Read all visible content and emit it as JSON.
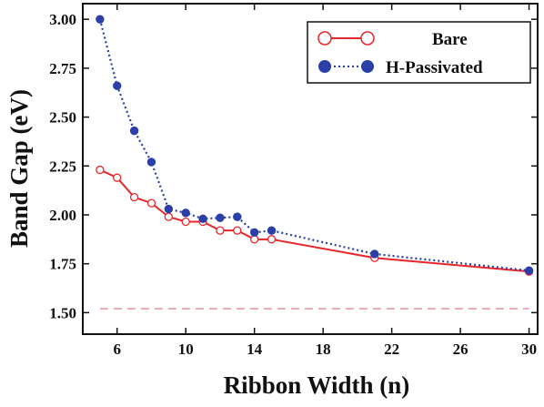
{
  "chart_data": {
    "type": "line",
    "xlabel": "Ribbon Width (n)",
    "ylabel": "Band Gap (eV)",
    "xlim": [
      4,
      30.5
    ],
    "ylim": [
      1.39,
      3.08
    ],
    "x_ticks": [
      6,
      10,
      14,
      18,
      22,
      26,
      30
    ],
    "x_tick_labels": [
      "6",
      "10",
      "14",
      "18",
      "22",
      "26",
      "30"
    ],
    "y_ticks": [
      1.5,
      1.75,
      2.0,
      2.25,
      2.5,
      2.75,
      3.0
    ],
    "y_tick_labels": [
      "1.50",
      "1.75",
      "2.00",
      "2.25",
      "2.50",
      "2.75",
      "3.00"
    ],
    "grid": false,
    "legend_position": "top-right",
    "series": [
      {
        "name": "Bare",
        "color": "#e8262a",
        "marker": "open-circle",
        "line_style": "solid",
        "x": [
          5,
          6,
          7,
          8,
          9,
          10,
          11,
          12,
          13,
          14,
          15,
          21,
          30
        ],
        "y": [
          2.23,
          2.19,
          2.09,
          2.06,
          1.99,
          1.965,
          1.965,
          1.92,
          1.92,
          1.875,
          1.875,
          1.78,
          1.71
        ]
      },
      {
        "name": "H-Passivated",
        "color": "#2a3fa8",
        "marker": "filled-circle",
        "line_style": "dotted",
        "x": [
          5,
          6,
          7,
          8,
          9,
          10,
          11,
          12,
          13,
          14,
          15,
          21,
          30
        ],
        "y": [
          3.0,
          2.66,
          2.43,
          2.27,
          2.03,
          2.01,
          1.98,
          1.985,
          1.99,
          1.91,
          1.92,
          1.8,
          1.715
        ]
      }
    ],
    "reference_line": {
      "y": 1.52,
      "color": "#e89aa0",
      "line_style": "dashed"
    }
  }
}
